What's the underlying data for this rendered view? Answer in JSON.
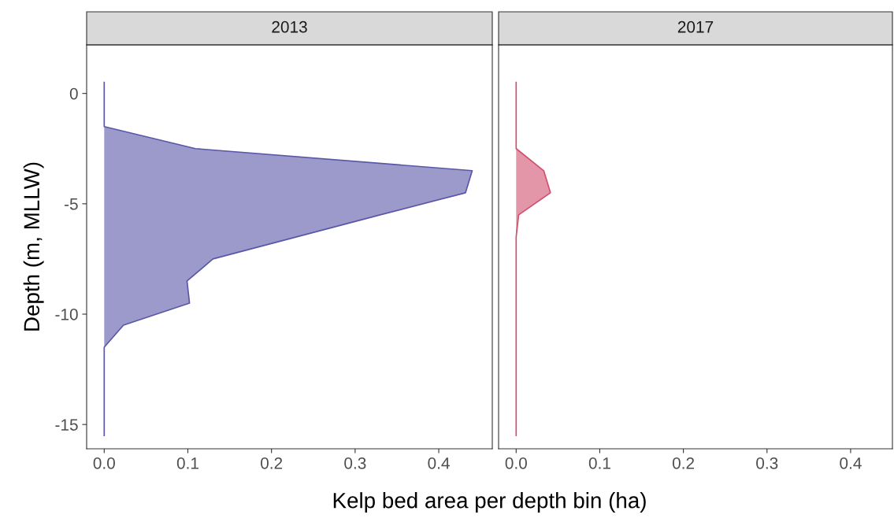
{
  "chart_data": [
    {
      "type": "area",
      "orientation": "horizontal",
      "title": "2013",
      "xlabel": "Kelp bed area per depth bin (ha)",
      "ylabel": "Depth (m, MLLW)",
      "x": [
        0.5,
        -0.5,
        -1.5,
        -2.5,
        -3.5,
        -4.5,
        -5.5,
        -6.5,
        -7.5,
        -8.5,
        -9.5,
        -10.5,
        -11.5,
        -12.5,
        -13.5,
        -14.5,
        -15.5
      ],
      "series": [
        {
          "color": "#5a56a8",
          "values": [
            0,
            0,
            0,
            0.109,
            0.44,
            0.432,
            0.33,
            0.23,
            0.13,
            0.099,
            0.102,
            0.023,
            0,
            0,
            0,
            0,
            0
          ]
        }
      ],
      "xlim": [
        -0.021,
        0.464
      ],
      "xticks": [
        {
          "value": 0,
          "label": "0.0"
        },
        0.1,
        0.2,
        0.3,
        0.4
      ],
      "ylim": [
        -16.1,
        2.2
      ],
      "yticks": [
        {
          "value": -15,
          "label": "-15"
        },
        {
          "value": -10,
          "label": "-10"
        },
        {
          "value": -5,
          "label": "-5"
        },
        0
      ],
      "grid": false
    },
    {
      "type": "area",
      "orientation": "horizontal",
      "title": "2017",
      "x": [
        0.5,
        -0.5,
        -1.5,
        -2.5,
        -3.5,
        -4.5,
        -5.5,
        -6.5,
        -7.5,
        -8.5,
        -9.5,
        -10.5,
        -11.5,
        -12.5,
        -13.5,
        -14.5,
        -15.5
      ],
      "series": [
        {
          "color": "#d0506e",
          "values": [
            0,
            0,
            0,
            0,
            0.033,
            0.041,
            0.003,
            0,
            0,
            0,
            0,
            0,
            0,
            0,
            0,
            0,
            0
          ]
        }
      ],
      "xlim": [
        -0.021,
        0.45
      ],
      "xticks": [
        {
          "value": 0,
          "label": "0.0"
        },
        0.1,
        0.2,
        0.3,
        0.4
      ],
      "ylim": [
        -16.1,
        2.2
      ],
      "tick_labels": "x",
      "grid": false
    }
  ]
}
